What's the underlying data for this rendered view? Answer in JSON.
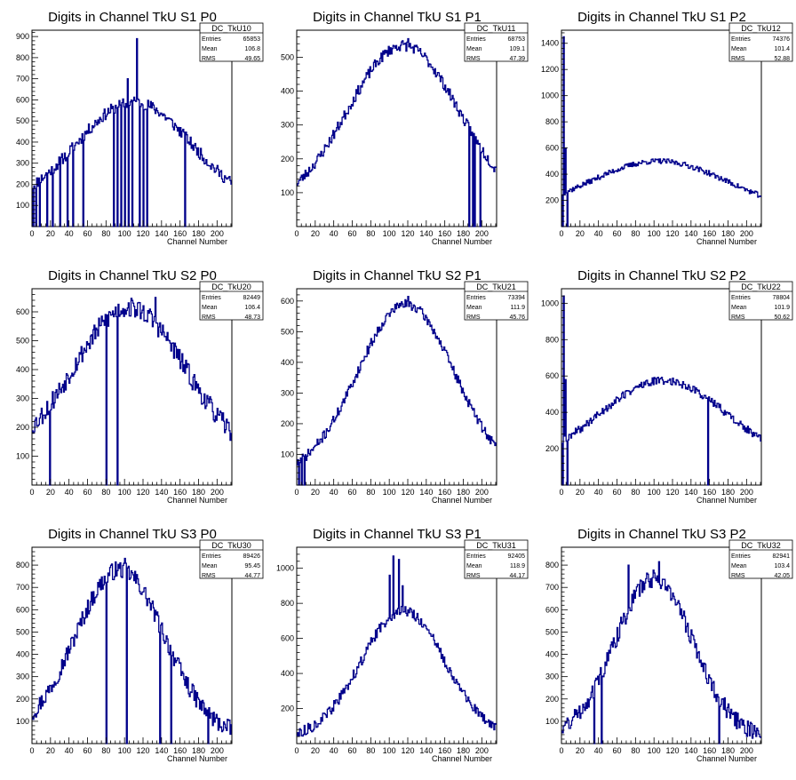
{
  "chart_data": [
    {
      "type": "histogram",
      "title": "Digits in Channel TkU S1 P0",
      "xlabel": "Channel Number",
      "ylabel": "",
      "xlim": [
        0,
        216
      ],
      "ylim": [
        0,
        930
      ],
      "xticks": [
        0,
        20,
        40,
        60,
        80,
        100,
        120,
        140,
        160,
        180,
        200
      ],
      "yticks": [
        100,
        200,
        300,
        400,
        500,
        600,
        700,
        800,
        900
      ],
      "stats": {
        "name": "DC_TkU10",
        "rows": [
          {
            "label": "Entries",
            "value": "65853"
          },
          {
            "label": "Mean",
            "value": "106.8"
          },
          {
            "label": "RMS",
            "value": "49.65"
          }
        ]
      },
      "shape": {
        "peak": 590,
        "center": 110,
        "width": 62,
        "base": 90,
        "noise": 28,
        "seed": 11
      },
      "spikes": [
        {
          "x": 113,
          "y": 890
        },
        {
          "x": 103,
          "y": 700
        }
      ],
      "dips": [
        1,
        4,
        8,
        16,
        22,
        30,
        38,
        44,
        55,
        88,
        92,
        96,
        100,
        104,
        108,
        116,
        120,
        124,
        165
      ]
    },
    {
      "type": "histogram",
      "title": "Digits in Channel TkU S1 P1",
      "xlabel": "Channel Number",
      "ylabel": "",
      "xlim": [
        0,
        216
      ],
      "ylim": [
        0,
        580
      ],
      "xticks": [
        0,
        20,
        40,
        60,
        80,
        100,
        120,
        140,
        160,
        180,
        200
      ],
      "yticks": [
        100,
        200,
        300,
        400,
        500
      ],
      "stats": {
        "name": "DC_TkU11",
        "rows": [
          {
            "label": "Entries",
            "value": "68753"
          },
          {
            "label": "Mean",
            "value": "109.1"
          },
          {
            "label": "RMS",
            "value": "47.39"
          }
        ]
      },
      "shape": {
        "peak": 535,
        "center": 115,
        "width": 60,
        "base": 50,
        "noise": 16,
        "seed": 23
      },
      "spikes": [
        {
          "x": 120,
          "y": 555
        }
      ],
      "dips": [
        186,
        190,
        192,
        198
      ]
    },
    {
      "type": "histogram",
      "title": "Digits in Channel TkU S1 P2",
      "xlabel": "Channel Number",
      "ylabel": "",
      "xlim": [
        0,
        216
      ],
      "ylim": [
        0,
        1500
      ],
      "xticks": [
        0,
        20,
        40,
        60,
        80,
        100,
        120,
        140,
        160,
        180,
        200
      ],
      "yticks": [
        200,
        400,
        600,
        800,
        1000,
        1200,
        1400
      ],
      "stats": {
        "name": "DC_TkU12",
        "rows": [
          {
            "label": "Entries",
            "value": "74376"
          },
          {
            "label": "Mean",
            "value": "101.4"
          },
          {
            "label": "RMS",
            "value": "52.88"
          }
        ]
      },
      "shape": {
        "peak": 500,
        "center": 105,
        "width": 75,
        "base": 100,
        "noise": 20,
        "seed": 37
      },
      "spikes": [
        {
          "x": 2,
          "y": 1450
        },
        {
          "x": 4,
          "y": 600
        }
      ],
      "dips": [
        1,
        6
      ]
    },
    {
      "type": "histogram",
      "title": "Digits in Channel TkU S2 P0",
      "xlabel": "Channel Number",
      "ylabel": "",
      "xlim": [
        0,
        216
      ],
      "ylim": [
        0,
        680
      ],
      "xticks": [
        0,
        20,
        40,
        60,
        80,
        100,
        120,
        140,
        160,
        180,
        200
      ],
      "yticks": [
        100,
        200,
        300,
        400,
        500,
        600
      ],
      "stats": {
        "name": "DC_TkU20",
        "rows": [
          {
            "label": "Entries",
            "value": "82449"
          },
          {
            "label": "Mean",
            "value": "106.4"
          },
          {
            "label": "RMS",
            "value": "48.73"
          }
        ]
      },
      "shape": {
        "peak": 615,
        "center": 105,
        "width": 60,
        "base": 90,
        "noise": 35,
        "seed": 53
      },
      "spikes": [
        {
          "x": 133,
          "y": 650
        }
      ],
      "dips": [
        19,
        80,
        92
      ]
    },
    {
      "type": "histogram",
      "title": "Digits in Channel TkU S2 P1",
      "xlabel": "Channel Number",
      "ylabel": "",
      "xlim": [
        0,
        216
      ],
      "ylim": [
        0,
        640
      ],
      "xticks": [
        0,
        20,
        40,
        60,
        80,
        100,
        120,
        140,
        160,
        180,
        200
      ],
      "yticks": [
        100,
        200,
        300,
        400,
        500,
        600
      ],
      "stats": {
        "name": "DC_TkU21",
        "rows": [
          {
            "label": "Entries",
            "value": "73394"
          },
          {
            "label": "Mean",
            "value": "111.9"
          },
          {
            "label": "RMS",
            "value": "45.76"
          }
        ]
      },
      "shape": {
        "peak": 590,
        "center": 118,
        "width": 52,
        "base": 30,
        "noise": 16,
        "seed": 71
      },
      "spikes": [
        {
          "x": 120,
          "y": 615
        }
      ],
      "dips": [
        2,
        5,
        8
      ]
    },
    {
      "type": "histogram",
      "title": "Digits in Channel TkU S2 P2",
      "xlabel": "Channel Number",
      "ylabel": "",
      "xlim": [
        0,
        216
      ],
      "ylim": [
        0,
        1080
      ],
      "xticks": [
        0,
        20,
        40,
        60,
        80,
        100,
        120,
        140,
        160,
        180,
        200
      ],
      "yticks": [
        200,
        400,
        600,
        800,
        1000
      ],
      "stats": {
        "name": "DC_TkU22",
        "rows": [
          {
            "label": "Entries",
            "value": "78804"
          },
          {
            "label": "Mean",
            "value": "101.9"
          },
          {
            "label": "RMS",
            "value": "50.62"
          }
        ]
      },
      "shape": {
        "peak": 575,
        "center": 110,
        "width": 70,
        "base": 100,
        "noise": 22,
        "seed": 89
      },
      "spikes": [
        {
          "x": 2,
          "y": 1040
        },
        {
          "x": 4,
          "y": 580
        }
      ],
      "dips": [
        1,
        6,
        158
      ]
    },
    {
      "type": "histogram",
      "title": "Digits in Channel TkU S3 P0",
      "xlabel": "Channel Number",
      "ylabel": "",
      "xlim": [
        0,
        216
      ],
      "ylim": [
        0,
        880
      ],
      "xticks": [
        0,
        20,
        40,
        60,
        80,
        100,
        120,
        140,
        160,
        180,
        200
      ],
      "yticks": [
        100,
        200,
        300,
        400,
        500,
        600,
        700,
        800
      ],
      "stats": {
        "name": "DC_TkU30",
        "rows": [
          {
            "label": "Entries",
            "value": "89426"
          },
          {
            "label": "Mean",
            "value": "95.45"
          },
          {
            "label": "RMS",
            "value": "44.77"
          }
        ]
      },
      "shape": {
        "peak": 780,
        "center": 95,
        "width": 48,
        "base": 30,
        "noise": 40,
        "seed": 97
      },
      "spikes": [
        {
          "x": 100,
          "y": 830
        }
      ],
      "dips": [
        80,
        102,
        138,
        150,
        190
      ]
    },
    {
      "type": "histogram",
      "title": "Digits in Channel TkU S3 P1",
      "xlabel": "Channel Number",
      "ylabel": "",
      "xlim": [
        0,
        216
      ],
      "ylim": [
        0,
        1120
      ],
      "xticks": [
        0,
        20,
        40,
        60,
        80,
        100,
        120,
        140,
        160,
        180,
        200
      ],
      "yticks": [
        200,
        400,
        600,
        800,
        1000
      ],
      "stats": {
        "name": "DC_TkU31",
        "rows": [
          {
            "label": "Entries",
            "value": "92405"
          },
          {
            "label": "Mean",
            "value": "118.9"
          },
          {
            "label": "RMS",
            "value": "44.17"
          }
        ]
      },
      "shape": {
        "peak": 760,
        "center": 115,
        "width": 45,
        "base": 30,
        "noise": 30,
        "seed": 113
      },
      "spikes": [
        {
          "x": 104,
          "y": 1070
        },
        {
          "x": 110,
          "y": 1050
        },
        {
          "x": 100,
          "y": 960
        },
        {
          "x": 114,
          "y": 900
        }
      ],
      "dips": []
    },
    {
      "type": "histogram",
      "title": "Digits in Channel TkU S3 P2",
      "xlabel": "Channel Number",
      "ylabel": "",
      "xlim": [
        0,
        216
      ],
      "ylim": [
        0,
        880
      ],
      "xticks": [
        0,
        20,
        40,
        60,
        80,
        100,
        120,
        140,
        160,
        180,
        200
      ],
      "yticks": [
        100,
        200,
        300,
        400,
        500,
        600,
        700,
        800
      ],
      "stats": {
        "name": "DC_TkU32",
        "rows": [
          {
            "label": "Entries",
            "value": "82941"
          },
          {
            "label": "Mean",
            "value": "103.4"
          },
          {
            "label": "RMS",
            "value": "42.05"
          }
        ]
      },
      "shape": {
        "peak": 740,
        "center": 100,
        "width": 42,
        "base": 30,
        "noise": 40,
        "seed": 131
      },
      "spikes": [
        {
          "x": 105,
          "y": 815
        },
        {
          "x": 72,
          "y": 800
        }
      ],
      "dips": [
        35,
        43,
        170
      ]
    }
  ],
  "colors": {
    "line": "#00008b",
    "axis": "#000000",
    "background": "#ffffff"
  }
}
